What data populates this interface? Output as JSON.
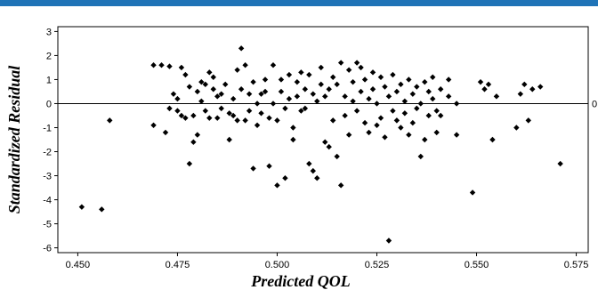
{
  "theme": {
    "accent_bar": "#1f73b7",
    "point_color": "#000000",
    "axis_color": "#000000"
  },
  "chart_data": {
    "type": "scatter",
    "xlabel": "Predicted QOL",
    "ylabel": "Standardized Residual",
    "xlim": [
      0.445,
      0.578
    ],
    "ylim": [
      -6.2,
      3.2
    ],
    "xticks": [
      "0.450",
      "0.475",
      "0.500",
      "0.525",
      "0.550",
      "0.575"
    ],
    "yticks": [
      "3",
      "2",
      "1",
      "0",
      "-1",
      "-2",
      "-3",
      "-4",
      "-5",
      "-6"
    ],
    "reference_line": {
      "y": 0,
      "label": "0"
    },
    "grid": false,
    "points": [
      [
        0.451,
        -4.3
      ],
      [
        0.456,
        -4.4
      ],
      [
        0.458,
        -0.7
      ],
      [
        0.469,
        1.6
      ],
      [
        0.469,
        -0.9
      ],
      [
        0.471,
        1.6
      ],
      [
        0.473,
        1.55
      ],
      [
        0.472,
        -1.2
      ],
      [
        0.473,
        -0.2
      ],
      [
        0.474,
        0.4
      ],
      [
        0.475,
        0.2
      ],
      [
        0.475,
        -0.3
      ],
      [
        0.476,
        1.5
      ],
      [
        0.476,
        -0.5
      ],
      [
        0.477,
        1.2
      ],
      [
        0.477,
        -0.6
      ],
      [
        0.478,
        -2.5
      ],
      [
        0.478,
        0.7
      ],
      [
        0.479,
        -0.5
      ],
      [
        0.479,
        -1.6
      ],
      [
        0.48,
        0.5
      ],
      [
        0.48,
        -1.3
      ],
      [
        0.481,
        0.9
      ],
      [
        0.481,
        0.1
      ],
      [
        0.482,
        -0.3
      ],
      [
        0.482,
        0.8
      ],
      [
        0.483,
        1.3
      ],
      [
        0.483,
        -0.6
      ],
      [
        0.484,
        0.6
      ],
      [
        0.484,
        1.1
      ],
      [
        0.485,
        -0.6
      ],
      [
        0.485,
        0.3
      ],
      [
        0.486,
        0.4
      ],
      [
        0.486,
        -0.2
      ],
      [
        0.487,
        0.8
      ],
      [
        0.488,
        -0.4
      ],
      [
        0.488,
        -1.5
      ],
      [
        0.489,
        0.2
      ],
      [
        0.489,
        -0.5
      ],
      [
        0.49,
        1.4
      ],
      [
        0.49,
        -0.7
      ],
      [
        0.491,
        0.6
      ],
      [
        0.491,
        2.3
      ],
      [
        0.492,
        1.6
      ],
      [
        0.492,
        -0.7
      ],
      [
        0.493,
        -0.3
      ],
      [
        0.493,
        0.4
      ],
      [
        0.494,
        0.9
      ],
      [
        0.494,
        -2.7
      ],
      [
        0.495,
        0.0
      ],
      [
        0.495,
        -0.9
      ],
      [
        0.496,
        0.4
      ],
      [
        0.496,
        -0.4
      ],
      [
        0.497,
        1.0
      ],
      [
        0.497,
        0.5
      ],
      [
        0.498,
        -2.6
      ],
      [
        0.498,
        -0.6
      ],
      [
        0.499,
        1.6
      ],
      [
        0.499,
        0.0
      ],
      [
        0.5,
        -3.4
      ],
      [
        0.5,
        -0.7
      ],
      [
        0.501,
        0.5
      ],
      [
        0.501,
        1.0
      ],
      [
        0.502,
        -3.1
      ],
      [
        0.502,
        -0.2
      ],
      [
        0.503,
        0.2
      ],
      [
        0.503,
        1.2
      ],
      [
        0.504,
        -1.0
      ],
      [
        0.504,
        -1.5
      ],
      [
        0.505,
        0.3
      ],
      [
        0.505,
        0.9
      ],
      [
        0.506,
        1.3
      ],
      [
        0.506,
        -0.3
      ],
      [
        0.507,
        0.6
      ],
      [
        0.507,
        -0.2
      ],
      [
        0.508,
        1.2
      ],
      [
        0.508,
        -2.5
      ],
      [
        0.509,
        0.4
      ],
      [
        0.509,
        -2.8
      ],
      [
        0.51,
        0.1
      ],
      [
        0.51,
        -3.1
      ],
      [
        0.511,
        1.5
      ],
      [
        0.511,
        0.8
      ],
      [
        0.512,
        -1.6
      ],
      [
        0.512,
        0.3
      ],
      [
        0.513,
        -1.8
      ],
      [
        0.513,
        0.6
      ],
      [
        0.514,
        1.1
      ],
      [
        0.514,
        -0.7
      ],
      [
        0.515,
        -2.2
      ],
      [
        0.515,
        0.8
      ],
      [
        0.516,
        1.7
      ],
      [
        0.516,
        -3.4
      ],
      [
        0.517,
        0.3
      ],
      [
        0.517,
        -0.5
      ],
      [
        0.518,
        1.4
      ],
      [
        0.518,
        -1.3
      ],
      [
        0.519,
        0.9
      ],
      [
        0.519,
        0.1
      ],
      [
        0.52,
        1.7
      ],
      [
        0.52,
        -0.3
      ],
      [
        0.521,
        1.5
      ],
      [
        0.521,
        0.5
      ],
      [
        0.522,
        -0.8
      ],
      [
        0.522,
        1.0
      ],
      [
        0.523,
        0.2
      ],
      [
        0.523,
        -1.2
      ],
      [
        0.524,
        1.3
      ],
      [
        0.524,
        0.6
      ],
      [
        0.525,
        -0.9
      ],
      [
        0.525,
        0.0
      ],
      [
        0.526,
        1.1
      ],
      [
        0.526,
        -0.6
      ],
      [
        0.527,
        0.7
      ],
      [
        0.527,
        -1.4
      ],
      [
        0.528,
        -5.7
      ],
      [
        0.528,
        0.3
      ],
      [
        0.529,
        -0.3
      ],
      [
        0.529,
        1.2
      ],
      [
        0.53,
        -0.7
      ],
      [
        0.53,
        0.5
      ],
      [
        0.531,
        -1.0
      ],
      [
        0.531,
        0.8
      ],
      [
        0.532,
        0.1
      ],
      [
        0.532,
        -0.4
      ],
      [
        0.533,
        1.0
      ],
      [
        0.533,
        -1.3
      ],
      [
        0.534,
        0.4
      ],
      [
        0.534,
        -0.8
      ],
      [
        0.535,
        0.7
      ],
      [
        0.535,
        -0.2
      ],
      [
        0.536,
        -2.2
      ],
      [
        0.536,
        0.0
      ],
      [
        0.537,
        0.9
      ],
      [
        0.537,
        -1.5
      ],
      [
        0.538,
        0.5
      ],
      [
        0.538,
        -0.5
      ],
      [
        0.539,
        1.1
      ],
      [
        0.539,
        0.2
      ],
      [
        0.54,
        -0.3
      ],
      [
        0.54,
        -1.2
      ],
      [
        0.541,
        0.6
      ],
      [
        0.541,
        -0.5
      ],
      [
        0.543,
        0.3
      ],
      [
        0.543,
        1.0
      ],
      [
        0.545,
        -1.3
      ],
      [
        0.545,
        0.0
      ],
      [
        0.549,
        -3.7
      ],
      [
        0.551,
        0.9
      ],
      [
        0.552,
        0.6
      ],
      [
        0.553,
        0.8
      ],
      [
        0.554,
        -1.5
      ],
      [
        0.555,
        0.3
      ],
      [
        0.56,
        -1.0
      ],
      [
        0.561,
        0.4
      ],
      [
        0.562,
        0.8
      ],
      [
        0.563,
        -0.7
      ],
      [
        0.564,
        0.6
      ],
      [
        0.566,
        0.7
      ],
      [
        0.571,
        -2.5
      ]
    ]
  }
}
